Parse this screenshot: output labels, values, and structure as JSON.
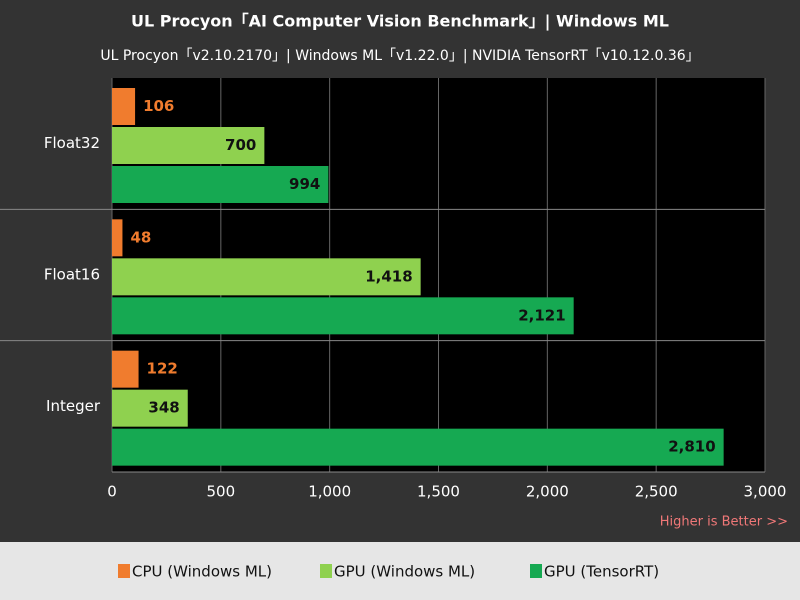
{
  "chart_data": {
    "type": "hbar",
    "title": "UL Procyon「AI Computer Vision Benchmark」| Windows ML",
    "subtitle": "UL Procyon「v2.10.2170」| Windows ML「v1.22.0」| NVIDIA TensorRT「v10.12.0.36」",
    "annotation": "Higher is Better >>",
    "categories": [
      "Float32",
      "Float16",
      "Integer"
    ],
    "series": [
      {
        "name": "CPU (Windows ML)",
        "color": "#f07c2e",
        "values": [
          106,
          48,
          122
        ],
        "value_labels": [
          "106",
          "48",
          "122"
        ]
      },
      {
        "name": "GPU (Windows ML)",
        "color": "#8fd14f",
        "values": [
          700,
          1418,
          348
        ],
        "value_labels": [
          "700",
          "1,418",
          "348"
        ]
      },
      {
        "name": "GPU (TensorRT)",
        "color": "#16a952",
        "values": [
          994,
          2121,
          2810
        ],
        "value_labels": [
          "994",
          "2,121",
          "2,810"
        ]
      }
    ],
    "xlim": [
      0,
      3000
    ],
    "xticks": [
      0,
      500,
      {
        "value": 1000,
        "label": "1,000"
      },
      {
        "value": 1500,
        "label": "1,500"
      },
      {
        "value": 2000,
        "label": "2,000"
      },
      {
        "value": 2500,
        "label": "2,500"
      },
      {
        "value": 3000,
        "label": "3,000"
      }
    ],
    "grid": true,
    "legend": "bottom"
  }
}
